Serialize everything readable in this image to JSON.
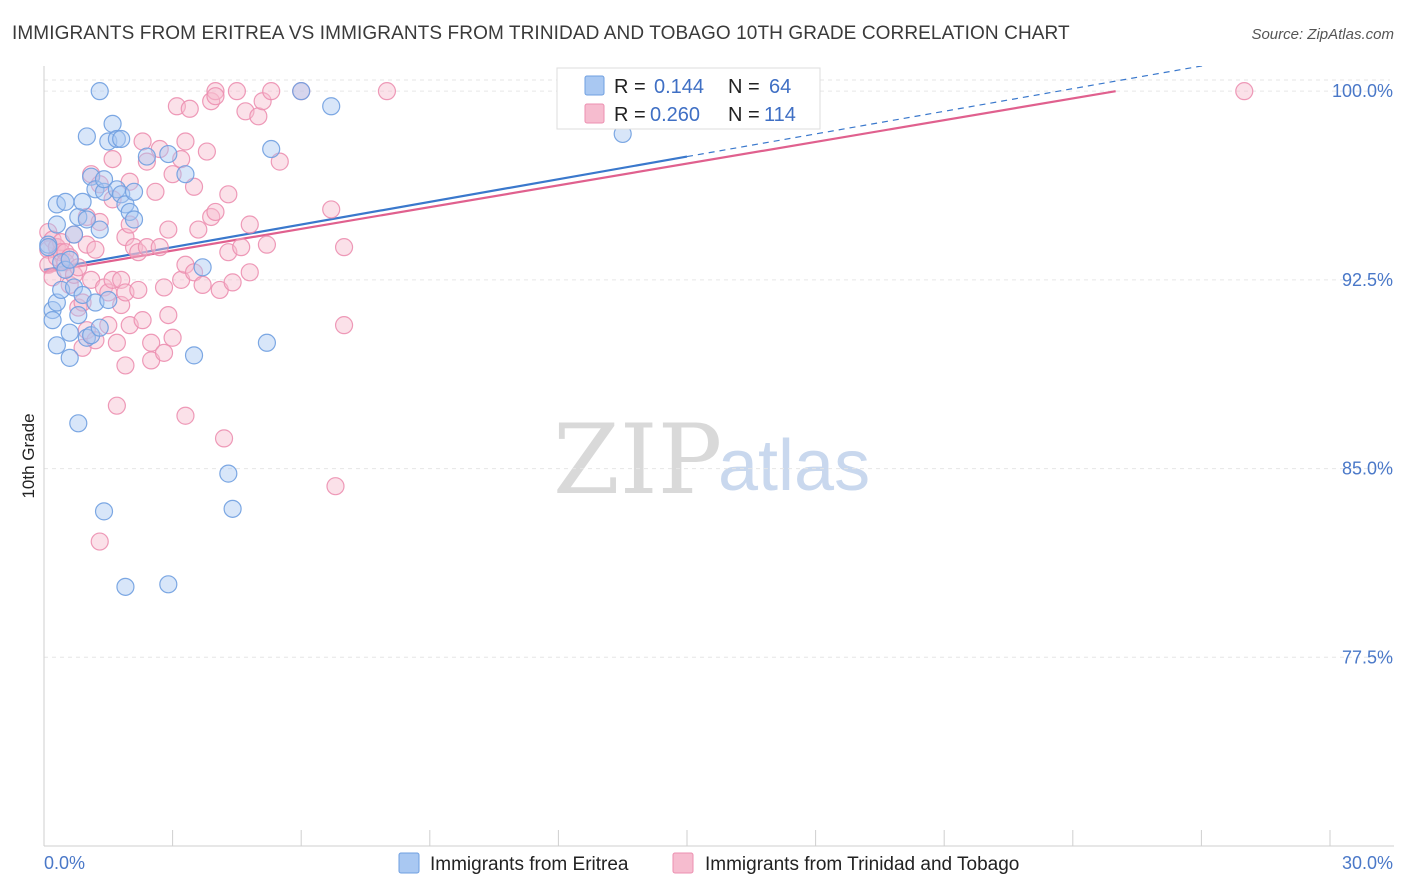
{
  "title": "IMMIGRANTS FROM ERITREA VS IMMIGRANTS FROM TRINIDAD AND TOBAGO 10TH GRADE CORRELATION CHART",
  "source": "Source: ZipAtlas.com",
  "watermark": {
    "zip": "ZIP",
    "atlas": "atlas"
  },
  "colors": {
    "eritrea_fill": "#a9c8f2",
    "eritrea_stroke": "#6f9fe0",
    "eritrea_line": "#3a78cc",
    "trinidad_fill": "#f6bccf",
    "trinidad_stroke": "#ec8fb0",
    "trinidad_line": "#e0608e"
  },
  "legend": {
    "eritrea": {
      "r_label": "R =",
      "r_value": "0.144",
      "n_label": "N =",
      "n_value": "64"
    },
    "trinidad": {
      "r_label": "R =",
      "r_value": "0.260",
      "n_label": "N =",
      "n_value": "114"
    }
  },
  "bottom_legend": {
    "eritrea": "Immigrants from Eritrea",
    "trinidad": "Immigrants from Trinidad and Tobago"
  },
  "chart_data": {
    "type": "scatter",
    "xlabel": "",
    "ylabel": "10th Grade",
    "xlim": [
      0,
      30
    ],
    "ylim": [
      70,
      101
    ],
    "x_tick_labels": {
      "left": "0.0%",
      "right": "30.0%"
    },
    "y_ticks": [
      {
        "value": 100,
        "label": "100.0%"
      },
      {
        "value": 92.5,
        "label": "92.5%"
      },
      {
        "value": 85,
        "label": "85.0%"
      },
      {
        "value": 77.5,
        "label": "77.5%"
      }
    ],
    "grid": "horizontal",
    "legend_position": "top-center",
    "series": [
      {
        "name": "Immigrants from Eritrea",
        "trend": {
          "x0": 0,
          "y0": 92.9,
          "x1": 15,
          "y1": 97.4,
          "dashed_to_x": 30,
          "dashed_to_y": 101.9
        },
        "points": [
          [
            0.1,
            93.9
          ],
          [
            0.1,
            93.8
          ],
          [
            0.2,
            91.3
          ],
          [
            0.2,
            90.9
          ],
          [
            0.3,
            91.6
          ],
          [
            0.3,
            89.9
          ],
          [
            0.3,
            94.7
          ],
          [
            0.3,
            95.5
          ],
          [
            0.4,
            93.2
          ],
          [
            0.4,
            92.1
          ],
          [
            0.5,
            95.6
          ],
          [
            0.5,
            92.9
          ],
          [
            0.6,
            93.3
          ],
          [
            0.6,
            90.4
          ],
          [
            0.6,
            89.4
          ],
          [
            0.7,
            94.3
          ],
          [
            0.7,
            92.2
          ],
          [
            0.8,
            91.1
          ],
          [
            0.8,
            95.0
          ],
          [
            0.8,
            86.8
          ],
          [
            0.9,
            95.6
          ],
          [
            0.9,
            91.9
          ],
          [
            1.0,
            94.9
          ],
          [
            1.0,
            90.2
          ],
          [
            1.0,
            98.2
          ],
          [
            1.1,
            96.6
          ],
          [
            1.1,
            90.3
          ],
          [
            1.2,
            96.1
          ],
          [
            1.2,
            91.6
          ],
          [
            1.3,
            100.0
          ],
          [
            1.3,
            94.5
          ],
          [
            1.3,
            90.6
          ],
          [
            1.4,
            96.0
          ],
          [
            1.4,
            96.5
          ],
          [
            1.4,
            83.3
          ],
          [
            1.5,
            98.0
          ],
          [
            1.5,
            91.7
          ],
          [
            1.6,
            98.7
          ],
          [
            1.7,
            96.1
          ],
          [
            1.7,
            98.1
          ],
          [
            1.8,
            98.1
          ],
          [
            1.8,
            95.9
          ],
          [
            1.9,
            95.5
          ],
          [
            1.9,
            80.3
          ],
          [
            2.0,
            95.2
          ],
          [
            2.1,
            96.0
          ],
          [
            2.1,
            94.9
          ],
          [
            2.4,
            97.4
          ],
          [
            2.9,
            97.5
          ],
          [
            2.9,
            80.4
          ],
          [
            3.3,
            96.7
          ],
          [
            3.5,
            89.5
          ],
          [
            3.7,
            93.0
          ],
          [
            4.3,
            84.8
          ],
          [
            4.4,
            83.4
          ],
          [
            5.2,
            90.0
          ],
          [
            5.3,
            97.7
          ],
          [
            6.0,
            100.0
          ],
          [
            6.7,
            99.4
          ],
          [
            13.5,
            98.3
          ]
        ]
      },
      {
        "name": "Immigrants from Trinidad and Tobago",
        "trend": {
          "x0": 0,
          "y0": 92.8,
          "x1": 25,
          "y1": 100.0
        },
        "points": [
          [
            0.1,
            94.4
          ],
          [
            0.1,
            93.7
          ],
          [
            0.1,
            93.1
          ],
          [
            0.2,
            94.1
          ],
          [
            0.2,
            92.6
          ],
          [
            0.3,
            93.8
          ],
          [
            0.3,
            93.4
          ],
          [
            0.3,
            93.8
          ],
          [
            0.4,
            94.0
          ],
          [
            0.4,
            93.6
          ],
          [
            0.5,
            93.6
          ],
          [
            0.5,
            93.2
          ],
          [
            0.5,
            92.9
          ],
          [
            0.6,
            93.4
          ],
          [
            0.6,
            92.3
          ],
          [
            0.7,
            92.7
          ],
          [
            0.7,
            94.3
          ],
          [
            0.8,
            93.0
          ],
          [
            0.8,
            91.4
          ],
          [
            0.9,
            91.6
          ],
          [
            0.9,
            89.8
          ],
          [
            1.0,
            93.9
          ],
          [
            1.0,
            95.0
          ],
          [
            1.0,
            90.5
          ],
          [
            1.1,
            96.7
          ],
          [
            1.1,
            92.5
          ],
          [
            1.2,
            93.7
          ],
          [
            1.2,
            90.1
          ],
          [
            1.3,
            94.8
          ],
          [
            1.3,
            96.3
          ],
          [
            1.3,
            82.1
          ],
          [
            1.4,
            92.2
          ],
          [
            1.5,
            92.0
          ],
          [
            1.5,
            90.7
          ],
          [
            1.6,
            95.7
          ],
          [
            1.6,
            97.3
          ],
          [
            1.6,
            92.5
          ],
          [
            1.7,
            87.5
          ],
          [
            1.7,
            90.0
          ],
          [
            1.8,
            92.5
          ],
          [
            1.8,
            91.5
          ],
          [
            1.9,
            92.0
          ],
          [
            1.9,
            94.2
          ],
          [
            1.9,
            89.1
          ],
          [
            2.0,
            94.7
          ],
          [
            2.0,
            96.4
          ],
          [
            2.0,
            90.7
          ],
          [
            2.1,
            93.8
          ],
          [
            2.2,
            93.6
          ],
          [
            2.2,
            92.1
          ],
          [
            2.3,
            98.0
          ],
          [
            2.3,
            90.9
          ],
          [
            2.4,
            97.2
          ],
          [
            2.4,
            93.8
          ],
          [
            2.5,
            90.0
          ],
          [
            2.5,
            89.3
          ],
          [
            2.6,
            96.0
          ],
          [
            2.7,
            97.7
          ],
          [
            2.7,
            93.8
          ],
          [
            2.8,
            92.2
          ],
          [
            2.8,
            89.6
          ],
          [
            2.9,
            94.5
          ],
          [
            2.9,
            91.1
          ],
          [
            3.0,
            96.7
          ],
          [
            3.0,
            90.2
          ],
          [
            3.1,
            99.4
          ],
          [
            3.2,
            92.5
          ],
          [
            3.2,
            97.3
          ],
          [
            3.3,
            98.0
          ],
          [
            3.3,
            93.1
          ],
          [
            3.3,
            87.1
          ],
          [
            3.4,
            99.3
          ],
          [
            3.5,
            96.2
          ],
          [
            3.5,
            92.8
          ],
          [
            3.6,
            94.5
          ],
          [
            3.7,
            92.3
          ],
          [
            3.8,
            97.6
          ],
          [
            3.9,
            99.6
          ],
          [
            3.9,
            95.0
          ],
          [
            4.0,
            100.0
          ],
          [
            4.0,
            99.8
          ],
          [
            4.0,
            95.2
          ],
          [
            4.1,
            92.1
          ],
          [
            4.2,
            86.2
          ],
          [
            4.3,
            95.9
          ],
          [
            4.3,
            93.6
          ],
          [
            4.4,
            92.4
          ],
          [
            4.5,
            100.0
          ],
          [
            4.6,
            93.8
          ],
          [
            4.7,
            99.2
          ],
          [
            4.8,
            94.7
          ],
          [
            4.8,
            92.8
          ],
          [
            5.0,
            99.0
          ],
          [
            5.1,
            99.6
          ],
          [
            5.2,
            93.9
          ],
          [
            5.3,
            100.0
          ],
          [
            5.5,
            97.2
          ],
          [
            6.0,
            100.0
          ],
          [
            6.7,
            95.3
          ],
          [
            6.8,
            84.3
          ],
          [
            7.0,
            93.8
          ],
          [
            7.0,
            90.7
          ],
          [
            8.0,
            100.0
          ],
          [
            28.0,
            100.0
          ]
        ]
      }
    ]
  }
}
